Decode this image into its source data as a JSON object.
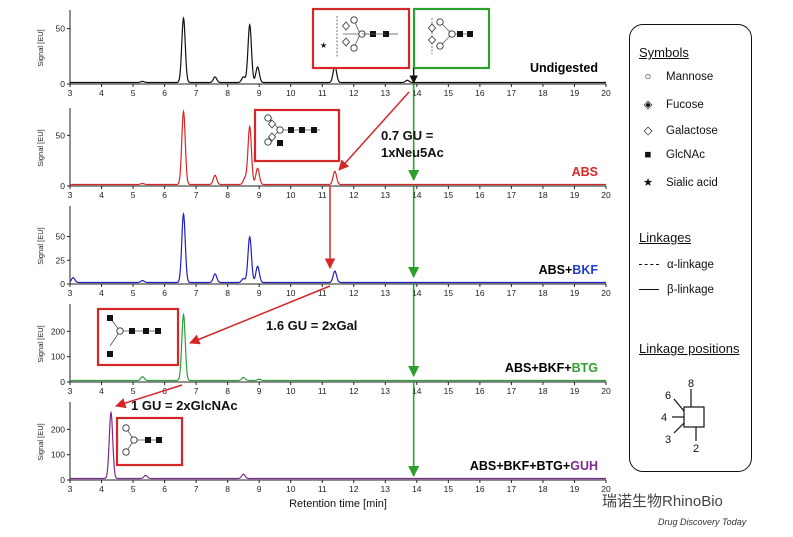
{
  "chart_data": {
    "type": "line",
    "xlabel": "Retention time [min]",
    "ylabel": "Signal [EU]",
    "xlim": [
      3,
      20
    ],
    "xticks": [
      3,
      4,
      5,
      6,
      7,
      8,
      9,
      10,
      11,
      12,
      13,
      14,
      15,
      16,
      17,
      18,
      19,
      20
    ],
    "panels": [
      {
        "name": "Undigested",
        "label_parts": [
          {
            "text": "Undigested",
            "color": "#000000"
          }
        ],
        "color": "#111111",
        "ylim": [
          0,
          65
        ],
        "yticks": [
          0,
          50
        ],
        "peaks": [
          [
            5.3,
            1
          ],
          [
            6.6,
            58
          ],
          [
            7.6,
            5
          ],
          [
            8.5,
            5
          ],
          [
            8.7,
            52
          ],
          [
            8.95,
            14
          ],
          [
            11.4,
            15
          ],
          [
            13.7,
            2
          ]
        ]
      },
      {
        "name": "ABS",
        "label_parts": [
          {
            "text": "ABS",
            "color": "#d62728"
          }
        ],
        "color": "#d62728",
        "ylim": [
          0,
          75
        ],
        "yticks": [
          0,
          50
        ],
        "peaks": [
          [
            5.3,
            1
          ],
          [
            6.6,
            72
          ],
          [
            7.6,
            9
          ],
          [
            8.55,
            6
          ],
          [
            8.7,
            57
          ],
          [
            8.95,
            16
          ],
          [
            11.4,
            13
          ]
        ]
      },
      {
        "name": "ABS+BKF",
        "label_parts": [
          {
            "text": "ABS+",
            "color": "#000000"
          },
          {
            "text": "BKF",
            "color": "#1f3fd0"
          }
        ],
        "color": "#1f1fbf",
        "ylim": [
          0,
          80
        ],
        "yticks": [
          0,
          25,
          50
        ],
        "peaks": [
          [
            3.1,
            5
          ],
          [
            5.3,
            2
          ],
          [
            6.6,
            72
          ],
          [
            7.6,
            9
          ],
          [
            8.5,
            4
          ],
          [
            8.7,
            48
          ],
          [
            8.95,
            17
          ],
          [
            11.4,
            12
          ]
        ]
      },
      {
        "name": "ABS+BKF+BTG",
        "label_parts": [
          {
            "text": "ABS+BKF+",
            "color": "#000000"
          },
          {
            "text": "BTG",
            "color": "#2ca02c"
          }
        ],
        "color": "#2e9e3a",
        "ylim": [
          0,
          300
        ],
        "yticks": [
          0,
          100,
          200
        ],
        "peaks": [
          [
            5.3,
            15
          ],
          [
            6.6,
            260
          ],
          [
            8.5,
            12
          ],
          [
            9.0,
            5
          ]
        ]
      },
      {
        "name": "ABS+BKF+BTG+GUH",
        "label_parts": [
          {
            "text": "ABS+BKF+BTG+",
            "color": "#000000"
          },
          {
            "text": "GUH",
            "color": "#7b2b8f"
          }
        ],
        "color": "#7b2b8f",
        "ylim": [
          0,
          300
        ],
        "yticks": [
          0,
          100,
          200
        ],
        "peaks": [
          [
            4.3,
            260
          ],
          [
            5.4,
            12
          ],
          [
            8.5,
            17
          ]
        ]
      }
    ]
  },
  "annotations": {
    "shift_neu5ac": [
      "0.7 GU =",
      "1xNeu5Ac"
    ],
    "shift_gal": "1.6 GU = 2xGal",
    "shift_glcnac": "1 GU = 2xGlcNAc"
  },
  "legend": {
    "symbols_title": "Symbols",
    "symbols": [
      {
        "icon": "mannose-icon",
        "label": "Mannose"
      },
      {
        "icon": "fucose-icon",
        "label": "Fucose"
      },
      {
        "icon": "galactose-icon",
        "label": "Galactose"
      },
      {
        "icon": "glcnac-icon",
        "label": "GlcNAc"
      },
      {
        "icon": "sialic-acid-icon",
        "label": "Sialic acid"
      }
    ],
    "linkages_title": "Linkages",
    "linkages": [
      {
        "style": "dashed",
        "label": "α-linkage"
      },
      {
        "style": "solid",
        "label": "β-linkage"
      }
    ],
    "positions_title": "Linkage positions",
    "positions": [
      "8",
      "6",
      "4",
      "3",
      "2"
    ]
  },
  "credit": "Drug Discovery Today",
  "watermark": "瑞诺生物RhinoBio",
  "colors": {
    "red": "#d62728",
    "green": "#2ca02c",
    "blue": "#1f3fd0",
    "purple": "#7b2b8f"
  }
}
